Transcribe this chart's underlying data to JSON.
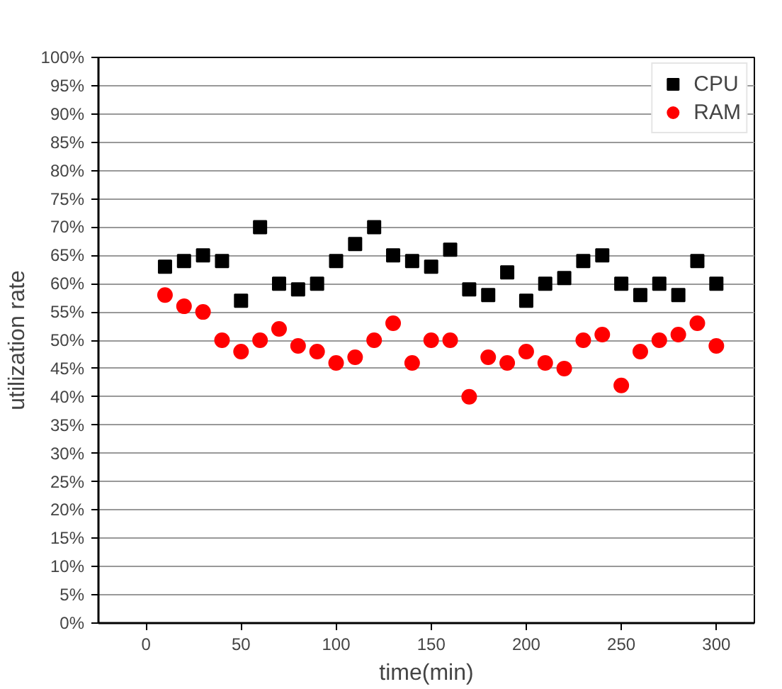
{
  "chart_data": {
    "type": "scatter",
    "xlabel": "time(min)",
    "ylabel": "utilization rate",
    "x": [
      10,
      20,
      30,
      40,
      50,
      60,
      70,
      80,
      90,
      100,
      110,
      120,
      130,
      140,
      150,
      160,
      170,
      180,
      190,
      200,
      210,
      220,
      230,
      240,
      250,
      260,
      270,
      280,
      290,
      300
    ],
    "series": [
      {
        "name": "CPU",
        "color": "#000000",
        "marker": "square",
        "values": [
          63,
          64,
          65,
          64,
          57,
          70,
          60,
          59,
          60,
          64,
          67,
          70,
          65,
          64,
          63,
          66,
          59,
          58,
          62,
          57,
          60,
          61,
          64,
          65,
          60,
          58,
          60,
          58,
          64,
          60
        ]
      },
      {
        "name": "RAM",
        "color": "#ff0000",
        "marker": "circle",
        "values": [
          58,
          56,
          55,
          50,
          48,
          50,
          52,
          49,
          48,
          46,
          47,
          50,
          53,
          46,
          50,
          50,
          40,
          47,
          46,
          48,
          46,
          45,
          50,
          51,
          42,
          48,
          50,
          51,
          53,
          49
        ]
      }
    ],
    "xlim": [
      -25,
      320
    ],
    "xticks": [
      0,
      50,
      100,
      150,
      200,
      250,
      300
    ],
    "ylim": [
      0,
      100
    ],
    "yticks": [
      {
        "value": 0,
        "label": "0%"
      },
      {
        "value": 5,
        "label": "5%"
      },
      {
        "value": 10,
        "label": "10%"
      },
      {
        "value": 15,
        "label": "15%"
      },
      {
        "value": 20,
        "label": "20%"
      },
      {
        "value": 25,
        "label": "25%"
      },
      {
        "value": 30,
        "label": "30%"
      },
      {
        "value": 35,
        "label": "35%"
      },
      {
        "value": 40,
        "label": "40%"
      },
      {
        "value": 45,
        "label": "45%"
      },
      {
        "value": 50,
        "label": "50%"
      },
      {
        "value": 55,
        "label": "55%"
      },
      {
        "value": 60,
        "label": "60%"
      },
      {
        "value": 65,
        "label": "65%"
      },
      {
        "value": 70,
        "label": "70%"
      },
      {
        "value": 75,
        "label": "75%"
      },
      {
        "value": 80,
        "label": "80%"
      },
      {
        "value": 85,
        "label": "85%"
      },
      {
        "value": 90,
        "label": "90%"
      },
      {
        "value": 95,
        "label": "95%"
      },
      {
        "value": 100,
        "label": "100%"
      }
    ],
    "grid": "y",
    "legend": "top right"
  }
}
